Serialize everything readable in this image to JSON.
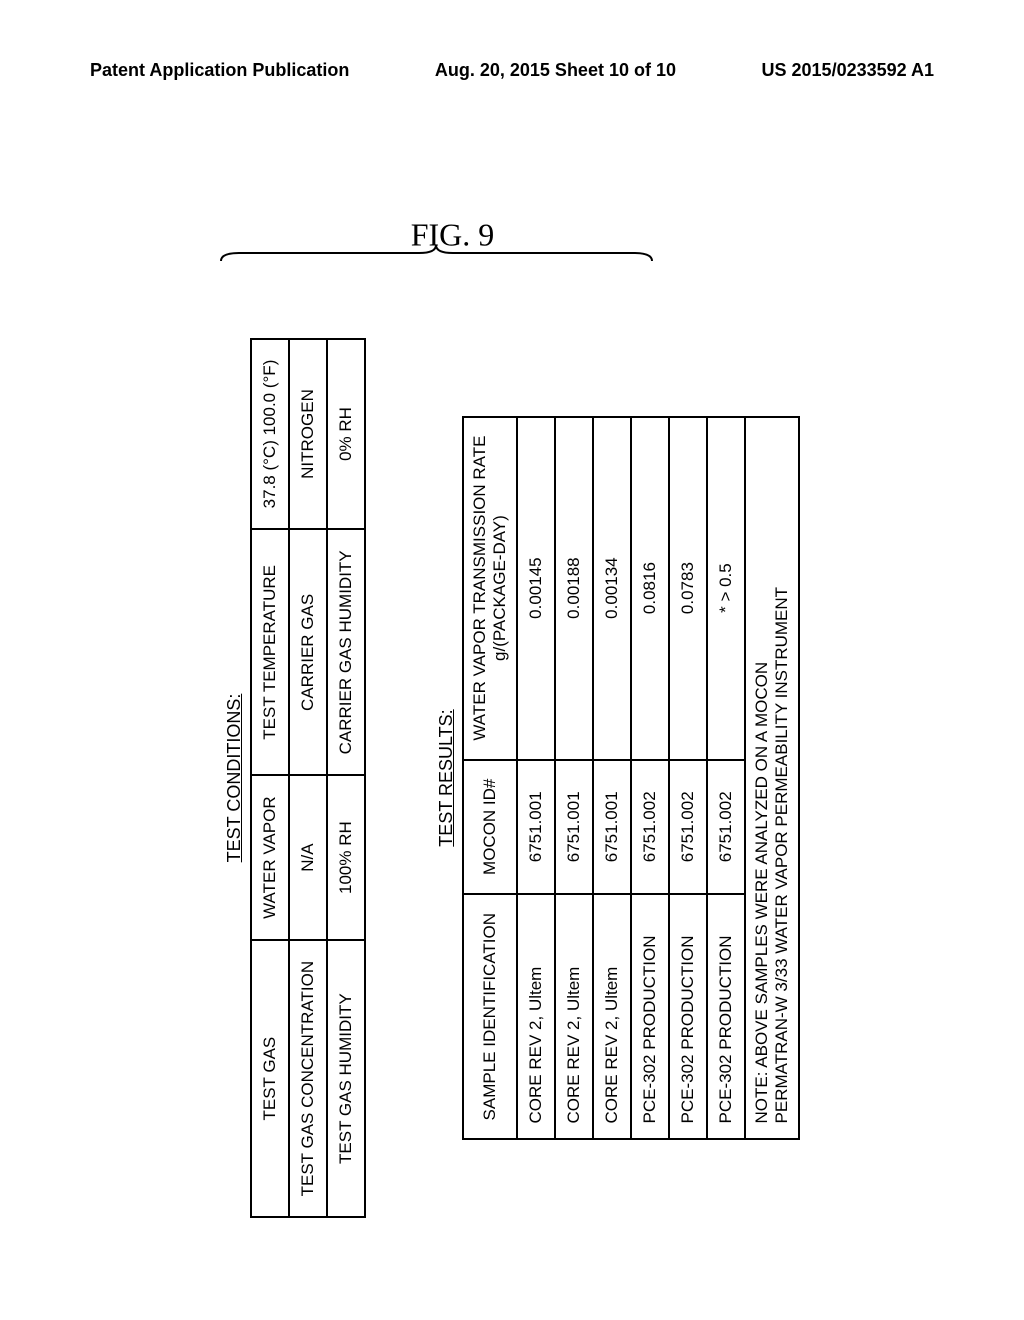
{
  "header": {
    "left": "Patent Application Publication",
    "center": "Aug. 20, 2015  Sheet 10 of 10",
    "right": "US 2015/0233592 A1"
  },
  "fig_label": "FIG. 9",
  "test_conditions": {
    "title": "TEST CONDITIONS:",
    "rows": [
      [
        "TEST GAS",
        "WATER VAPOR",
        "TEST TEMPERATURE",
        "37.8 (°C) 100.0 (°F)"
      ],
      [
        "TEST GAS CONCENTRATION",
        "N/A",
        "CARRIER GAS",
        "NITROGEN"
      ],
      [
        "TEST GAS HUMIDITY",
        "100% RH",
        "CARRIER GAS HUMIDITY",
        "0% RH"
      ]
    ]
  },
  "test_results": {
    "title": "TEST RESULTS:",
    "headers": {
      "col1": "SAMPLE IDENTIFICATION",
      "col2": "MOCON ID#",
      "col3_line1": "WATER VAPOR TRANSMISSION RATE",
      "col3_line2": "g/(PACKAGE-DAY)"
    },
    "rows": [
      [
        "CORE REV 2, Ultem",
        "6751.001",
        "0.00145"
      ],
      [
        "CORE REV 2, Ultem",
        "6751.001",
        "0.00188"
      ],
      [
        "CORE REV 2, Ultem",
        "6751.001",
        "0.00134"
      ],
      [
        "PCE-302 PRODUCTION",
        "6751.002",
        "0.0816"
      ],
      [
        "PCE-302 PRODUCTION",
        "6751.002",
        "0.0783"
      ],
      [
        "PCE-302 PRODUCTION",
        "6751.002",
        "* > 0.5"
      ]
    ],
    "note_line1": "NOTE: ABOVE SAMPLES WERE ANALYZED ON A MOCON",
    "note_line2": "PERMATRAN-W 3/33 WATER VAPOR PERMEABILITY INSTRUMENT"
  }
}
